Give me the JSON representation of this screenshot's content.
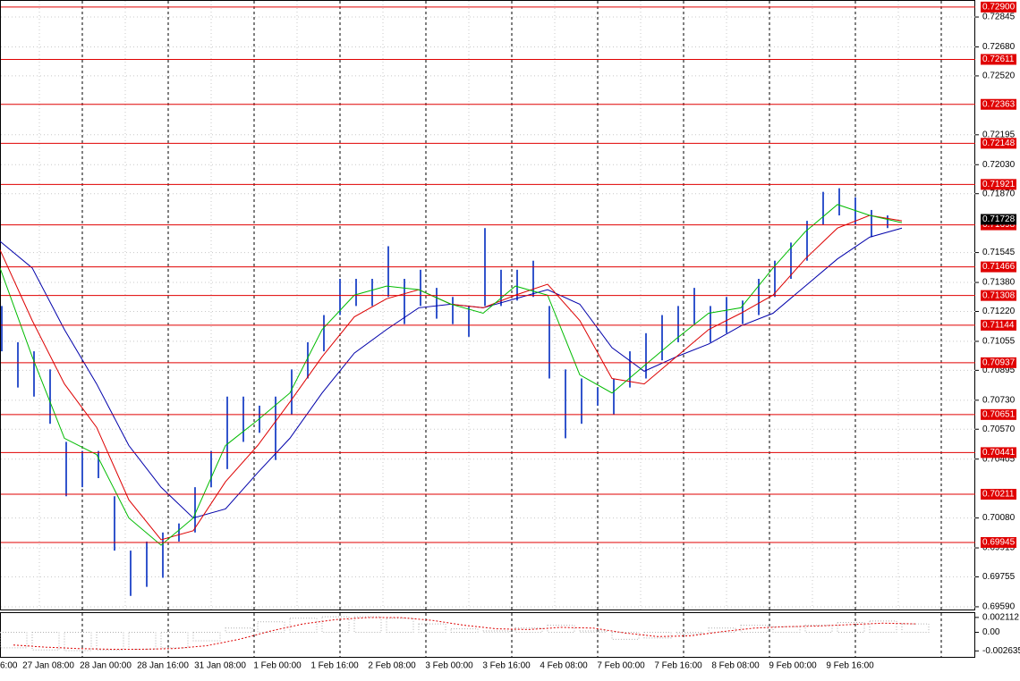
{
  "chart_data": {
    "type": "ohlc",
    "ylim": [
      0.6957,
      0.72929
    ],
    "yticks": [
      0.72845,
      {
        "value": 0.7268,
        "label": "0.72680"
      },
      {
        "value": 0.7252,
        "label": "0.72520"
      },
      0.72195,
      {
        "value": 0.7203,
        "label": "0.72030"
      },
      {
        "value": 0.7187,
        "label": "0.71870"
      },
      0.71545,
      {
        "value": 0.7138,
        "label": "0.71380"
      },
      {
        "value": 0.7122,
        "label": "0.71220"
      },
      0.71055,
      0.70895,
      {
        "value": 0.7073,
        "label": "0.70730"
      },
      {
        "value": 0.7057,
        "label": "0.70570"
      },
      0.70405,
      {
        "value": 0.7008,
        "label": "0.70080"
      },
      0.69915,
      0.69755,
      {
        "value": 0.6959,
        "label": "0.69590"
      }
    ],
    "x_labels": [
      "6:00",
      "27 Jan 08:00",
      "28 Jan 00:00",
      "28 Jan 16:00",
      "31 Jan 08:00",
      "1 Feb 00:00",
      "1 Feb 16:00",
      "2 Feb 08:00",
      "3 Feb 00:00",
      "3 Feb 16:00",
      "4 Feb 08:00",
      "7 Feb 00:00",
      "7 Feb 16:00",
      "8 Feb 08:00",
      "9 Feb 00:00",
      "9 Feb 16:00"
    ],
    "bar_color": "#3355cc",
    "high": [
      0.7125,
      0.7105,
      0.71,
      0.709,
      0.705,
      0.7045,
      0.7045,
      0.702,
      0.699,
      0.6995,
      0.7,
      0.7005,
      0.7025,
      0.7045,
      0.7075,
      0.7075,
      0.707,
      0.7075,
      0.709,
      0.7105,
      0.712,
      0.714,
      0.714,
      0.714,
      0.7158,
      0.714,
      0.7145,
      0.7135,
      0.713,
      0.7125,
      0.7168,
      0.7145,
      0.7145,
      0.715,
      0.7125,
      0.709,
      0.7085,
      0.708,
      0.7085,
      0.71,
      0.711,
      0.712,
      0.7125,
      0.7135,
      0.7125,
      0.713,
      0.7128,
      0.714,
      0.715,
      0.716,
      0.7172,
      0.7188,
      0.719,
      0.7185,
      0.7178,
      0.7175
    ],
    "low": [
      0.71,
      0.708,
      0.7075,
      0.706,
      0.702,
      0.7025,
      0.703,
      0.699,
      0.6965,
      0.697,
      0.6975,
      0.6995,
      0.7,
      0.7025,
      0.7035,
      0.705,
      0.7055,
      0.704,
      0.7065,
      0.7085,
      0.71,
      0.712,
      0.7125,
      0.7125,
      0.713,
      0.7115,
      0.7125,
      0.7118,
      0.7115,
      0.7108,
      0.7125,
      0.7125,
      0.7128,
      0.713,
      0.7085,
      0.7052,
      0.706,
      0.707,
      0.7065,
      0.708,
      0.7085,
      0.7095,
      0.7105,
      0.7115,
      0.7105,
      0.711,
      0.7115,
      0.712,
      0.713,
      0.714,
      0.715,
      0.717,
      0.7175,
      0.717,
      0.7163,
      0.7168
    ],
    "series": [
      {
        "color": "#0000aa",
        "values": [
          0.71607,
          0.7146,
          0.7112,
          0.7082,
          0.7048,
          0.7025,
          0.7008,
          0.7013,
          0.7033,
          0.7052,
          0.7077,
          0.7099,
          0.7112,
          0.7124,
          0.7126,
          0.7124,
          0.7129,
          0.7134,
          0.7126,
          0.7102,
          0.7089,
          0.7097,
          0.7104,
          0.7114,
          0.7121,
          0.7136,
          0.7151,
          0.7163,
          0.7168
        ]
      },
      {
        "color": "#dd0000",
        "values": [
          0.7156,
          0.7117,
          0.7082,
          0.7058,
          0.7018,
          0.6996,
          0.7001,
          0.7028,
          0.7048,
          0.7072,
          0.7097,
          0.7119,
          0.7129,
          0.7134,
          0.7126,
          0.7124,
          0.7131,
          0.7137,
          0.7117,
          0.7085,
          0.7082,
          0.7097,
          0.7112,
          0.7121,
          0.7131,
          0.7151,
          0.7168,
          0.7175,
          0.7172
        ]
      },
      {
        "color": "#00bb00",
        "values": [
          0.7146,
          0.7097,
          0.7052,
          0.7043,
          0.7008,
          0.6993,
          0.7008,
          0.7048,
          0.7062,
          0.7077,
          0.7112,
          0.7131,
          0.7136,
          0.7134,
          0.7126,
          0.7121,
          0.7136,
          0.7131,
          0.7087,
          0.7077,
          0.7092,
          0.7107,
          0.7121,
          0.7124,
          0.7146,
          0.7166,
          0.7181,
          0.7175,
          0.7171
        ]
      }
    ],
    "levels": [
      {
        "value": 0.729,
        "label": "0.72900"
      },
      0.72611,
      0.72363,
      0.72148,
      0.71921,
      0.71698,
      0.71466,
      0.71308,
      0.71144,
      0.70937,
      0.70651,
      0.70441,
      0.70211,
      0.69945
    ],
    "level_color": "#e00000",
    "current_price": 0.71728,
    "oscillator": {
      "ylim": [
        -0.00348,
        0.00273
      ],
      "yticks": [
        0.002112,
        {
          "value": 0,
          "label": "0.00"
        },
        -0.002635
      ],
      "histogram_color": "#b0b0b0",
      "signal_color": "#dd0000",
      "histogram": [
        -0.0022,
        -0.0025,
        -0.0026,
        -0.0025,
        -0.0024,
        -0.0022,
        -0.0012,
        0.0006,
        0.0015,
        0.002,
        0.0022,
        0.0022,
        0.002,
        0.0012,
        0.0005,
        0.0002,
        0.0006,
        0.001,
        0.0002,
        -0.001,
        -0.0008,
        -0.0002,
        0.0006,
        0.001,
        0.0008,
        0.001,
        0.0014,
        0.0016,
        0.0012
      ],
      "signal": [
        -0.0018,
        -0.0021,
        -0.0023,
        -0.0024,
        -0.0024,
        -0.0023,
        -0.0019,
        -0.001,
        0.0002,
        0.0012,
        0.0018,
        0.0021,
        0.0021,
        0.0017,
        0.001,
        0.0005,
        0.0004,
        0.0007,
        0.0006,
        -0.0001,
        -0.0006,
        -0.0005,
        0.0001,
        0.0006,
        0.0008,
        0.0009,
        0.0011,
        0.0013,
        0.0012
      ]
    }
  }
}
